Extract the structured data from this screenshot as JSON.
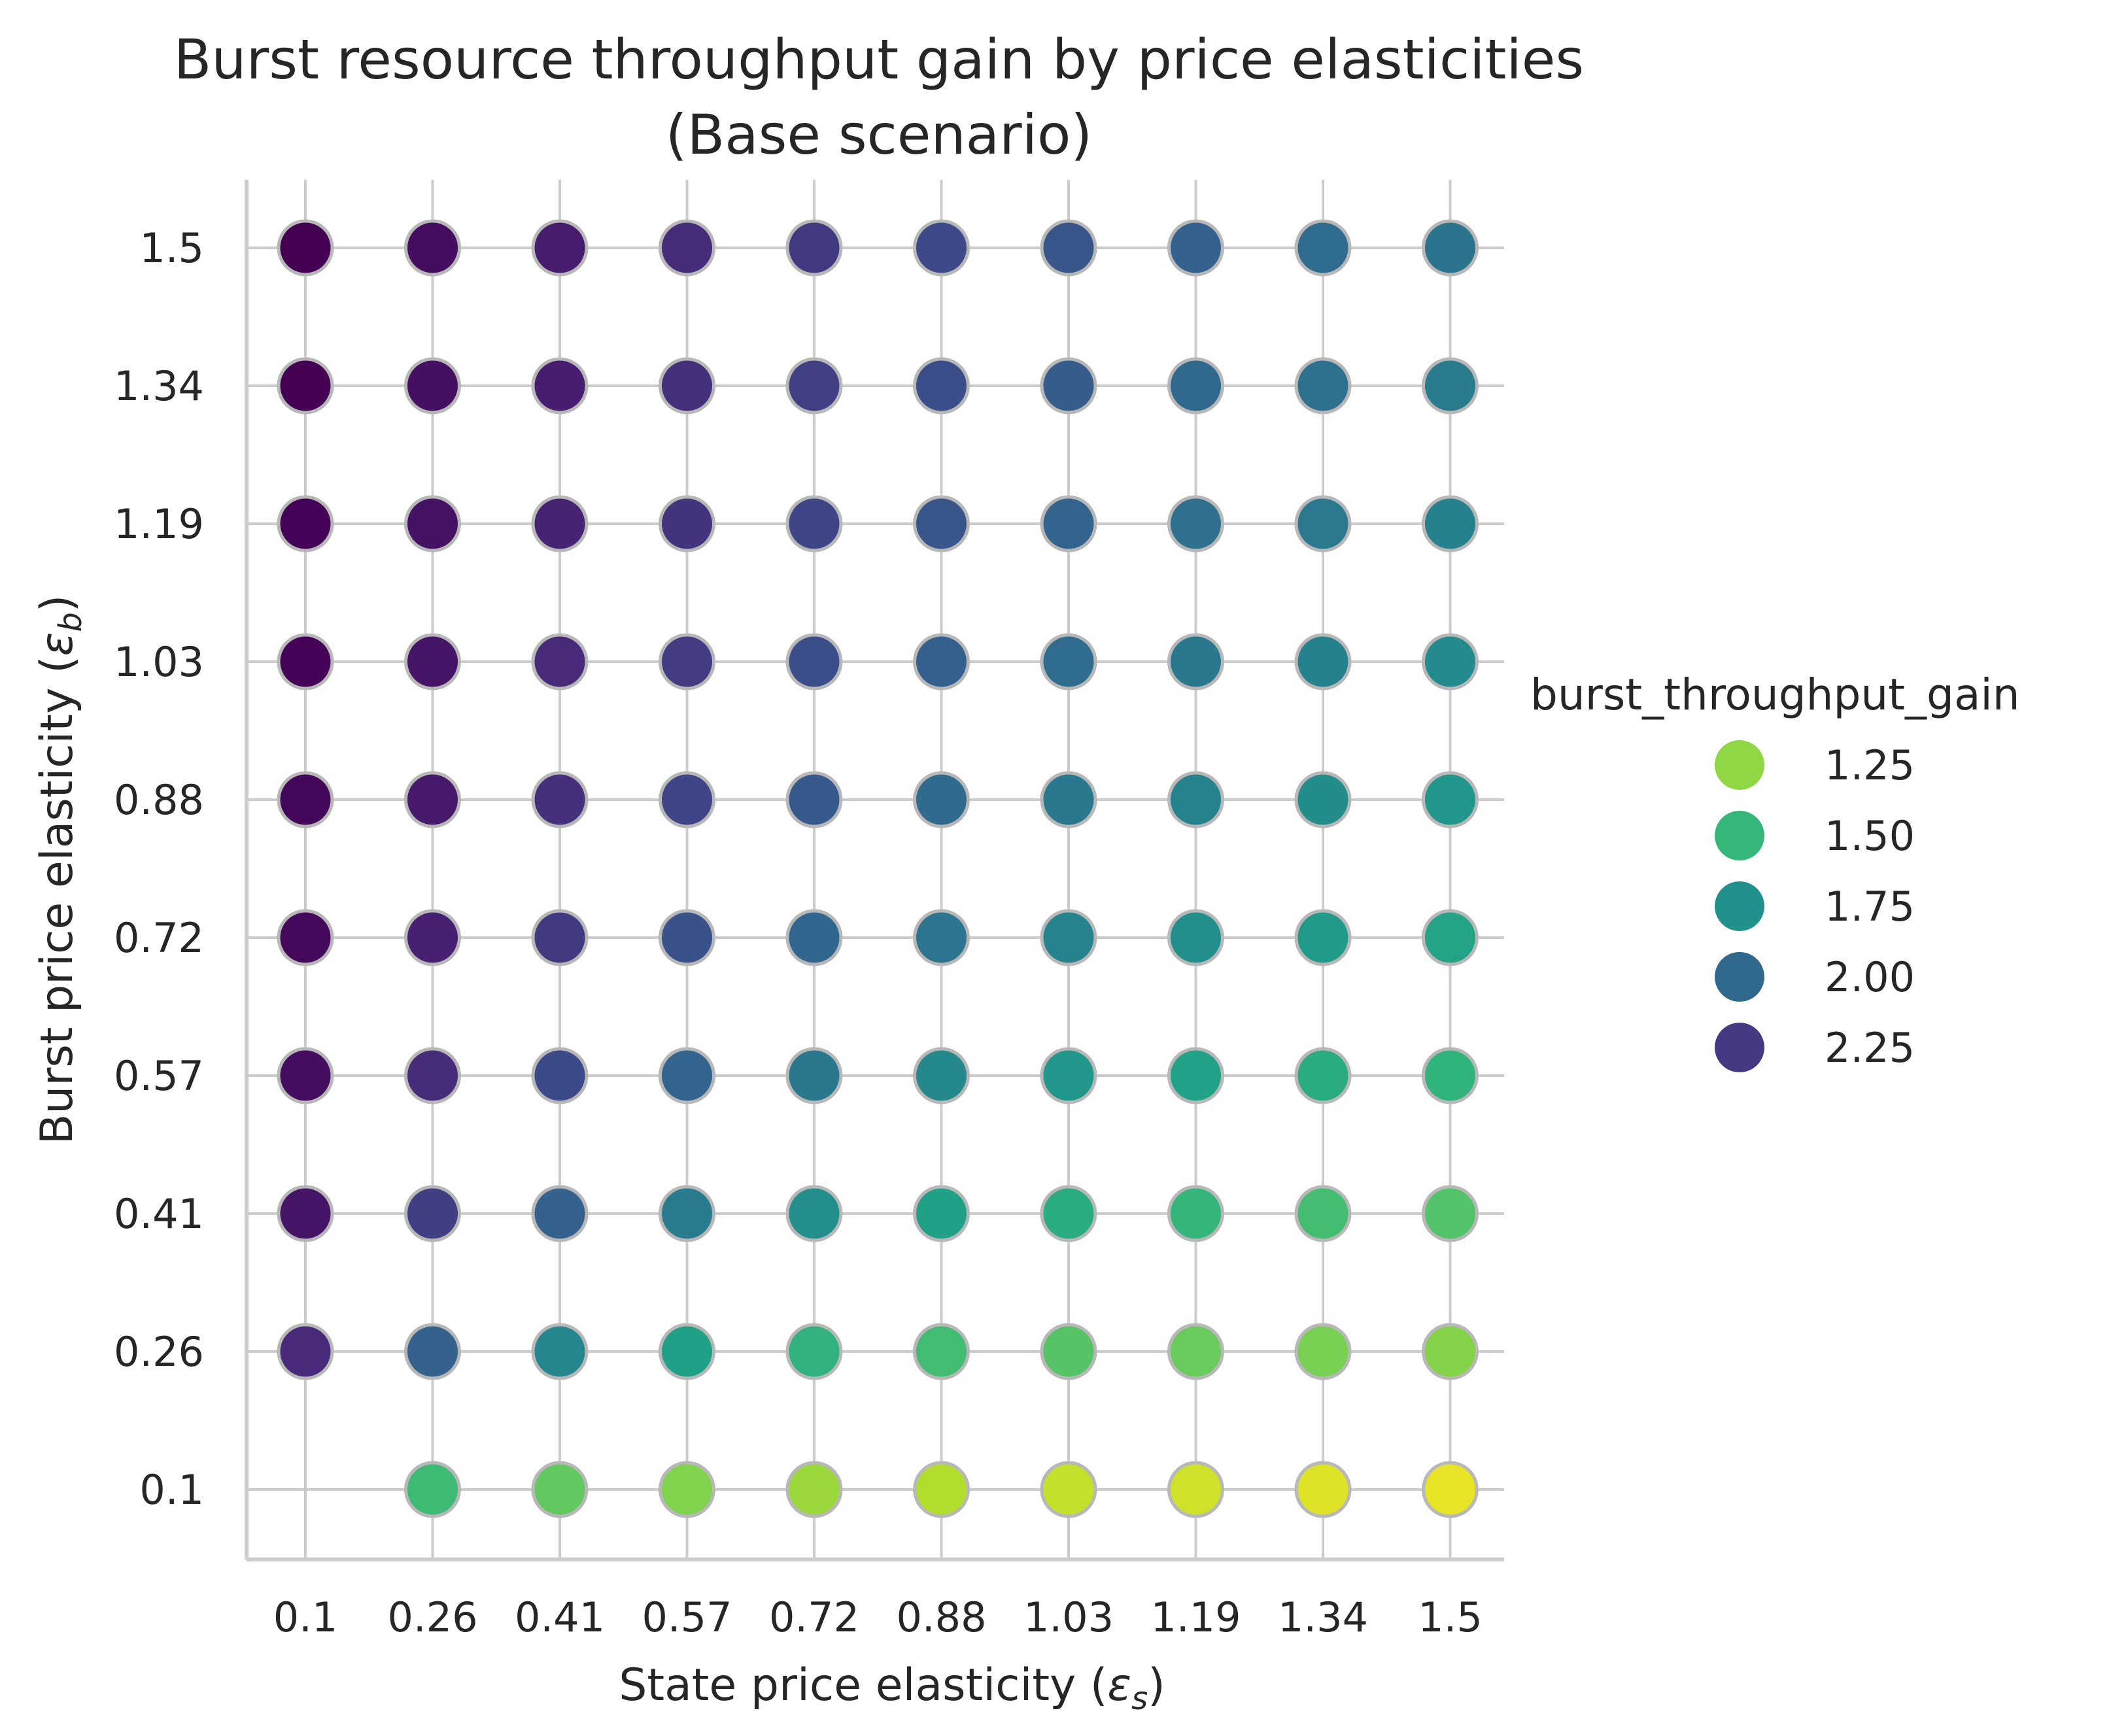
{
  "chart_data": {
    "type": "scatter",
    "title": "Burst resource throughput gain by price elasticities",
    "subtitle": "(Base scenario)",
    "xlabel_main": "State price elasticity (",
    "xlabel_symbol": "ε",
    "xlabel_sub": "s",
    "xlabel_close": ")",
    "ylabel_main": "Burst price elasticity (",
    "ylabel_symbol": "ε",
    "ylabel_sub": "b",
    "ylabel_close": ")",
    "x_ticks": [
      "0.1",
      "0.26",
      "0.41",
      "0.57",
      "0.72",
      "0.88",
      "1.03",
      "1.19",
      "1.34",
      "1.5"
    ],
    "y_ticks": [
      "0.1",
      "0.26",
      "0.41",
      "0.57",
      "0.72",
      "0.88",
      "1.03",
      "1.19",
      "1.34",
      "1.5"
    ],
    "grid": true,
    "colormap": "viridis",
    "color_range": [
      1.0,
      2.45
    ],
    "legend": {
      "title": "burst_throughput_gain",
      "placement": "right",
      "entries": [
        {
          "label": "1.25",
          "color": "#8fd744"
        },
        {
          "label": "1.50",
          "color": "#35b779"
        },
        {
          "label": "1.75",
          "color": "#21918c"
        },
        {
          "label": "2.00",
          "color": "#31688e"
        },
        {
          "label": "2.25",
          "color": "#443983"
        }
      ]
    },
    "series_values": [
      [
        null,
        1.46,
        1.36,
        1.28,
        1.22,
        1.17,
        1.13,
        1.1,
        1.07,
        1.05
      ],
      [
        2.28,
        2.0,
        1.78,
        1.63,
        1.52,
        1.45,
        1.39,
        1.34,
        1.3,
        1.27
      ],
      [
        2.37,
        2.18,
        2.0,
        1.85,
        1.73,
        1.63,
        1.56,
        1.49,
        1.44,
        1.4
      ],
      [
        2.4,
        2.27,
        2.12,
        1.99,
        1.87,
        1.77,
        1.69,
        1.62,
        1.56,
        1.51
      ],
      [
        2.42,
        2.32,
        2.2,
        2.08,
        1.97,
        1.88,
        1.8,
        1.73,
        1.66,
        1.61
      ],
      [
        2.43,
        2.35,
        2.25,
        2.14,
        2.04,
        1.95,
        1.87,
        1.8,
        1.74,
        1.69
      ],
      [
        2.44,
        2.37,
        2.28,
        2.19,
        2.1,
        2.01,
        1.94,
        1.87,
        1.81,
        1.76
      ],
      [
        2.44,
        2.38,
        2.31,
        2.23,
        2.14,
        2.06,
        1.99,
        1.92,
        1.86,
        1.81
      ],
      [
        2.45,
        2.39,
        2.33,
        2.25,
        2.17,
        2.1,
        2.03,
        1.96,
        1.91,
        1.85
      ],
      [
        2.45,
        2.4,
        2.34,
        2.27,
        2.2,
        2.13,
        2.06,
        2.0,
        1.94,
        1.89
      ]
    ]
  }
}
